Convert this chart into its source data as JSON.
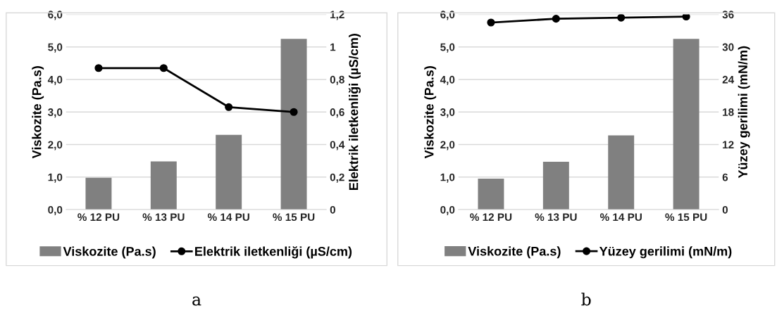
{
  "chart_data": [
    {
      "type": "bar",
      "categories": [
        "% 12 PU",
        "% 13 PU",
        "% 14 PU",
        "% 15 PU"
      ],
      "ylabel": "Viskozite (Pa.s)",
      "y2label": "Elektrik iletkenliği (µS/cm)",
      "series": [
        {
          "name": "Viskozite (Pa.s)",
          "color": "#808080",
          "values": [
            0.98,
            1.48,
            2.3,
            5.25
          ]
        },
        {
          "name": "Elektrik iletkenliği (µS/cm)",
          "type": "line",
          "axis": "y2",
          "color": "#000000",
          "values": [
            0.87,
            0.87,
            0.63,
            0.6
          ]
        }
      ],
      "ylim": [
        0,
        6
      ],
      "yticks": [
        {
          "value": 0,
          "label": "0,0"
        },
        {
          "value": 1,
          "label": "1,0"
        },
        {
          "value": 2,
          "label": "2,0"
        },
        {
          "value": 3,
          "label": "3,0"
        },
        {
          "value": 4,
          "label": "4,0"
        },
        {
          "value": 5,
          "label": "5,0"
        },
        {
          "value": 6,
          "label": "6,0"
        }
      ],
      "y2lim": [
        0,
        1.2
      ],
      "y2ticks": [
        0,
        {
          "value": 0.2,
          "label": "0,2"
        },
        {
          "value": 0.4,
          "label": "0,4"
        },
        {
          "value": 0.6,
          "label": "0,6"
        },
        {
          "value": 0.8,
          "label": "0,8"
        },
        1,
        {
          "value": 1.2,
          "label": "1,2"
        }
      ],
      "grid": "y",
      "legend": "bottom",
      "marker": "circle",
      "annotations": [
        "a"
      ]
    },
    {
      "type": "bar",
      "categories": [
        "% 12 PU",
        "% 13 PU",
        "% 14 PU",
        "% 15 PU"
      ],
      "ylabel": "Viskozite (Pa.s)",
      "y2label": "Yüzey gerilimi (mN/m)",
      "series": [
        {
          "name": "Viskozite (Pa.s)",
          "color": "#808080",
          "values": [
            0.95,
            1.47,
            2.28,
            5.25
          ]
        },
        {
          "name": "Yüzey gerilimi (mN/m)",
          "type": "line",
          "axis": "y2",
          "color": "#000000",
          "values": [
            34.5,
            35.2,
            35.4,
            35.6
          ]
        }
      ],
      "ylim": [
        0,
        6
      ],
      "yticks": [
        {
          "value": 0,
          "label": "0,0"
        },
        {
          "value": 1,
          "label": "1,0"
        },
        {
          "value": 2,
          "label": "2,0"
        },
        {
          "value": 3,
          "label": "3,0"
        },
        {
          "value": 4,
          "label": "4,0"
        },
        {
          "value": 5,
          "label": "5,0"
        },
        {
          "value": 6,
          "label": "6,0"
        }
      ],
      "y2lim": [
        0,
        36
      ],
      "y2ticks": [
        0,
        6,
        12,
        18,
        24,
        30,
        36
      ],
      "grid": "y",
      "legend": "bottom",
      "marker": "circle",
      "annotations": [
        "b"
      ]
    }
  ]
}
